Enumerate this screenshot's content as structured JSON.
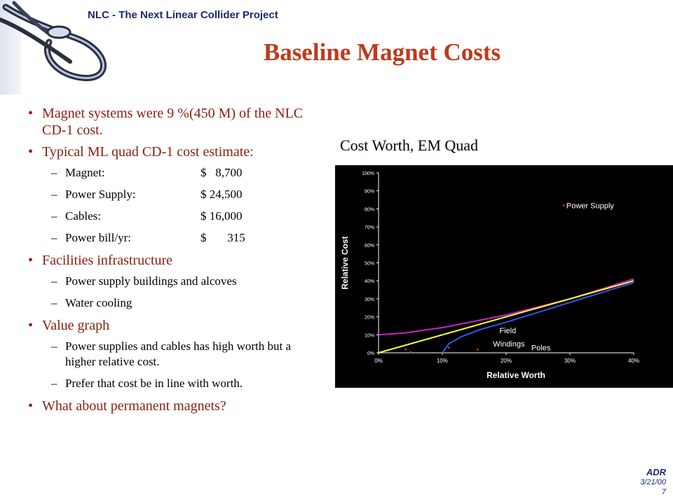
{
  "header": {
    "project": "NLC - The Next Linear Collider Project",
    "title": "Baseline Magnet Costs"
  },
  "bullets": [
    {
      "text": "Magnet systems were 9 %(450 M) of the NLC CD-1 cost.",
      "subs": []
    },
    {
      "text": "Typical ML quad CD-1 cost estimate:",
      "subs": [
        {
          "label": "Magnet:",
          "value": "$   8,700"
        },
        {
          "label": "Power Supply:",
          "value": "$ 24,500"
        },
        {
          "label": "Cables:",
          "value": "$ 16,000"
        },
        {
          "label": "Power bill/yr:",
          "value": "$       315"
        }
      ]
    },
    {
      "text": "Facilities infrastructure",
      "subs": [
        {
          "label": "Power supply buildings and alcoves",
          "value": ""
        },
        {
          "label": "Water cooling",
          "value": ""
        }
      ]
    },
    {
      "text": "Value graph",
      "subs": [
        {
          "label": "Power supplies and cables has high worth but a higher relative cost.",
          "value": ""
        },
        {
          "label": "Prefer that cost be in line with worth.",
          "value": ""
        }
      ]
    },
    {
      "text": "What about permanent magnets?",
      "subs": []
    }
  ],
  "chart_caption": "Cost Worth, EM Quad",
  "chart_data": {
    "type": "line",
    "xlabel": "Relative Worth",
    "ylabel": "Relative Cost",
    "x_ticks": [
      "0%",
      "10%",
      "20%",
      "30%",
      "40%"
    ],
    "y_ticks": [
      "0%",
      "10%",
      "20%",
      "30%",
      "40%",
      "50%",
      "60%",
      "70%",
      "80%",
      "90%",
      "100%"
    ],
    "xlim": [
      0,
      40
    ],
    "ylim": [
      0,
      100
    ],
    "grid": false,
    "series": [
      {
        "color": "#cc22cc",
        "x": [
          0,
          4,
          10,
          20,
          30,
          40
        ],
        "y": [
          10,
          11,
          14,
          21,
          30,
          41
        ]
      },
      {
        "color": "#ffff33",
        "x": [
          0,
          10,
          20,
          30,
          40
        ],
        "y": [
          0,
          10,
          20,
          30,
          40
        ]
      },
      {
        "color": "#3355ee",
        "x": [
          10,
          11,
          13,
          16,
          20,
          30,
          40
        ],
        "y": [
          0,
          5,
          9,
          13,
          17,
          28,
          39
        ]
      }
    ],
    "annotations": [
      {
        "text": "Power Supply",
        "x": 29,
        "y": 82
      },
      {
        "text": "Field",
        "x": 18.5,
        "y": 12.5
      },
      {
        "text": "Windings",
        "x": 17.5,
        "y": 5
      },
      {
        "text": "Poles",
        "x": 23.5,
        "y": 3
      }
    ],
    "markers": [
      {
        "x": 29,
        "y": 82
      },
      {
        "x": 4.2,
        "y": 2
      },
      {
        "x": 5,
        "y": 0.5
      },
      {
        "x": 15.5,
        "y": 2
      },
      {
        "x": 11,
        "y": 3
      }
    ]
  },
  "footer": {
    "author": "ADR",
    "date": "3/21/00",
    "page": "7"
  }
}
